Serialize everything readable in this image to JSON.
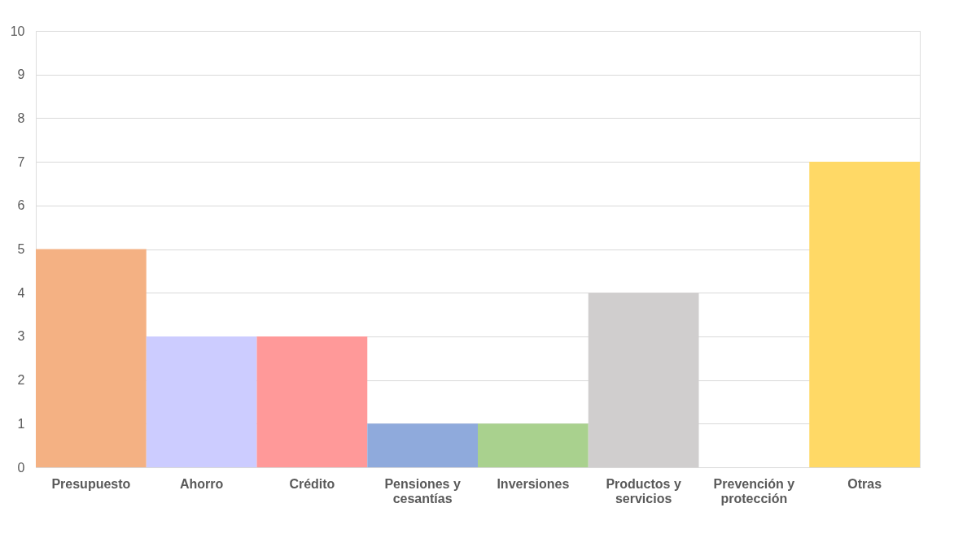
{
  "chart_data": {
    "type": "bar",
    "categories": [
      "Presupuesto",
      "Ahorro",
      "Crédito",
      "Pensiones y cesantías",
      "Inversiones",
      "Productos y servicios",
      "Prevención y protección",
      "Otras"
    ],
    "values": [
      5,
      3,
      3,
      1,
      1,
      4,
      0,
      7
    ],
    "colors": [
      "#f4b183",
      "#ccccff",
      "#ff9999",
      "#8faadc",
      "#a9d18e",
      "#d0cece",
      "#9dc3e6",
      "#ffd966"
    ],
    "ylim": [
      0,
      10
    ],
    "yticks": [
      0,
      1,
      2,
      3,
      4,
      5,
      6,
      7,
      8,
      9,
      10
    ],
    "grid": "y"
  }
}
